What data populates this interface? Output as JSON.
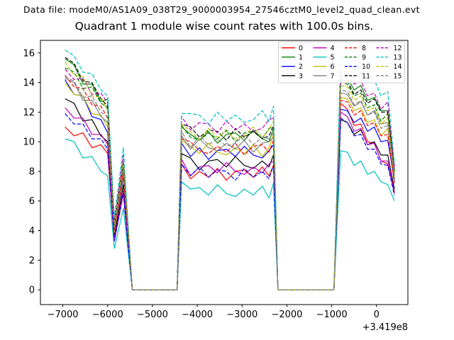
{
  "header": {
    "data_file": "Data file: modeM0/AS1A09_038T29_9000003954_27546cztM0_level2_quad_clean.evt"
  },
  "chart_data": {
    "type": "line",
    "title": "Quadrant 1 module wise count rates with 100.0s bins.",
    "xlabel": "",
    "ylabel": "",
    "x_offset_label": "+3.419e8",
    "xlim": [
      -7500,
      700
    ],
    "ylim": [
      -1.0,
      16.85
    ],
    "grid": false,
    "legend_position": "upper right",
    "legend_columns": 4,
    "x_ticks": [
      -7000,
      -6000,
      -5000,
      -4000,
      -3000,
      -2000,
      -1000,
      0
    ],
    "x_tick_labels": [
      "−7000",
      "−6000",
      "−5000",
      "−4000",
      "−3000",
      "−2000",
      "−1000",
      "0"
    ],
    "y_ticks": [
      0,
      2,
      4,
      6,
      8,
      10,
      12,
      14,
      16
    ],
    "y_tick_labels": [
      "0",
      "2",
      "4",
      "6",
      "8",
      "10",
      "12",
      "14",
      "16"
    ],
    "x": [
      -6950,
      -6750,
      -6550,
      -6350,
      -6150,
      -6000,
      -5850,
      -5650,
      -5450,
      -5200,
      -4950,
      -4700,
      -4450,
      -4350,
      -4150,
      -3950,
      -3750,
      -3550,
      -3350,
      -3150,
      -2950,
      -2750,
      -2550,
      -2400,
      -2300,
      -2200,
      -1950,
      -1700,
      -1450,
      -1200,
      -950,
      -800,
      -650,
      -500,
      -350,
      -200,
      -50,
      100,
      250,
      400
    ],
    "series": [
      {
        "name": "0",
        "color": "#ff0000",
        "dashed": false,
        "values": [
          11.0,
          10.4,
          10.6,
          9.6,
          9.8,
          9.2,
          3.3,
          6.5,
          0,
          0,
          0,
          0,
          0,
          8.5,
          7.5,
          8.0,
          7.6,
          8.2,
          7.4,
          8.0,
          8.1,
          7.6,
          8.3,
          7.7,
          8.4,
          0,
          0,
          0,
          0,
          0,
          0,
          12.6,
          12.2,
          11.1,
          11.2,
          10.0,
          9.9,
          8.7,
          8.5,
          6.6
        ]
      },
      {
        "name": "1",
        "color": "#008000",
        "dashed": false,
        "values": [
          15.6,
          15.2,
          13.9,
          13.9,
          12.7,
          12.9,
          4.3,
          8.5,
          0,
          0,
          0,
          0,
          0,
          11.0,
          10.5,
          10.1,
          10.7,
          9.9,
          10.5,
          10.6,
          10.1,
          10.8,
          10.2,
          10.0,
          10.9,
          0,
          0,
          0,
          0,
          0,
          0,
          14.5,
          14.3,
          13.5,
          13.8,
          12.8,
          13.0,
          12.1,
          12.1,
          8.0
        ]
      },
      {
        "name": "2",
        "color": "#0000ff",
        "dashed": false,
        "values": [
          14.2,
          13.2,
          13.1,
          11.7,
          11.5,
          10.6,
          3.9,
          7.6,
          0,
          0,
          0,
          0,
          0,
          9.9,
          9.0,
          9.6,
          8.8,
          9.4,
          9.5,
          9.0,
          9.7,
          9.1,
          8.9,
          9.4,
          9.8,
          0,
          0,
          0,
          0,
          0,
          0,
          12.2,
          12.1,
          11.3,
          11.6,
          10.7,
          11.0,
          10.0,
          10.1,
          7.4
        ]
      },
      {
        "name": "3",
        "color": "#000000",
        "dashed": false,
        "values": [
          12.9,
          12.6,
          11.4,
          11.5,
          10.4,
          10.0,
          3.6,
          7.1,
          0,
          0,
          0,
          0,
          0,
          9.2,
          8.9,
          8.1,
          8.7,
          8.8,
          8.3,
          9.0,
          8.4,
          8.2,
          8.7,
          8.3,
          9.1,
          0,
          0,
          0,
          0,
          0,
          0,
          11.5,
          11.3,
          10.5,
          10.8,
          9.8,
          10.0,
          9.1,
          9.1,
          6.8
        ]
      },
      {
        "name": "4",
        "color": "#bf00bf",
        "dashed": false,
        "values": [
          12.3,
          11.6,
          11.6,
          10.5,
          10.5,
          9.8,
          3.4,
          6.7,
          0,
          0,
          0,
          0,
          0,
          8.8,
          7.7,
          8.3,
          8.4,
          7.9,
          8.6,
          8.0,
          7.8,
          8.3,
          7.9,
          8.5,
          8.7,
          0,
          0,
          0,
          0,
          0,
          0,
          12.0,
          11.7,
          10.7,
          10.9,
          9.8,
          9.9,
          8.7,
          8.7,
          6.5
        ]
      },
      {
        "name": "5",
        "color": "#00bfbf",
        "dashed": false,
        "values": [
          10.2,
          10.0,
          8.9,
          9.0,
          8.0,
          7.7,
          2.8,
          5.5,
          0,
          0,
          0,
          0,
          0,
          7.3,
          6.8,
          6.9,
          6.4,
          7.1,
          6.5,
          6.3,
          6.8,
          6.4,
          7.0,
          6.2,
          7.2,
          0,
          0,
          0,
          0,
          0,
          0,
          9.4,
          9.3,
          8.4,
          8.7,
          7.8,
          8.0,
          7.3,
          7.1,
          6.0
        ]
      },
      {
        "name": "6",
        "color": "#bfbf00",
        "dashed": false,
        "values": [
          14.0,
          13.2,
          13.1,
          11.9,
          11.8,
          11.0,
          3.9,
          7.8,
          0,
          0,
          0,
          0,
          0,
          10.1,
          9.7,
          9.2,
          9.9,
          9.3,
          9.1,
          9.6,
          9.2,
          9.8,
          9.0,
          9.6,
          10.5,
          0,
          0,
          0,
          0,
          0,
          0,
          13.0,
          12.9,
          12.1,
          12.3,
          11.3,
          11.5,
          10.4,
          10.9,
          7.6
        ]
      },
      {
        "name": "7",
        "color": "#7f7f7f",
        "dashed": false,
        "values": [
          14.3,
          14.0,
          12.8,
          12.8,
          11.7,
          11.3,
          4.1,
          8.1,
          0,
          0,
          0,
          0,
          0,
          10.4,
          9.5,
          10.2,
          9.6,
          9.4,
          9.9,
          9.5,
          10.1,
          9.3,
          9.9,
          10.0,
          10.3,
          0,
          0,
          0,
          0,
          0,
          0,
          13.3,
          13.2,
          12.4,
          12.7,
          11.8,
          12.1,
          11.2,
          11.3,
          7.8
        ]
      },
      {
        "name": "8",
        "color": "#ff0000",
        "dashed": true,
        "values": [
          14.5,
          13.7,
          13.6,
          12.5,
          12.4,
          11.6,
          4.0,
          7.9,
          0,
          0,
          0,
          0,
          0,
          10.2,
          10.0,
          9.4,
          9.2,
          9.7,
          9.3,
          9.9,
          9.1,
          9.7,
          9.8,
          9.3,
          10.1,
          0,
          0,
          0,
          0,
          0,
          0,
          12.8,
          12.7,
          11.8,
          12.1,
          11.1,
          11.3,
          10.4,
          10.5,
          7.2
        ]
      },
      {
        "name": "9",
        "color": "#008000",
        "dashed": true,
        "values": [
          15.0,
          14.7,
          13.6,
          13.7,
          12.6,
          12.3,
          4.4,
          8.6,
          0,
          0,
          0,
          0,
          0,
          11.1,
          10.3,
          10.1,
          10.6,
          10.2,
          10.8,
          10.0,
          10.6,
          10.7,
          10.2,
          10.9,
          11.0,
          0,
          0,
          0,
          0,
          0,
          0,
          14.0,
          13.9,
          13.1,
          13.3,
          12.3,
          12.5,
          11.4,
          11.9,
          7.9
        ]
      },
      {
        "name": "10",
        "color": "#0000ff",
        "dashed": true,
        "values": [
          11.9,
          11.2,
          11.2,
          10.2,
          10.2,
          9.5,
          3.3,
          6.5,
          0,
          0,
          0,
          0,
          0,
          8.5,
          7.7,
          8.3,
          7.6,
          8.1,
          8.0,
          7.4,
          8.2,
          7.6,
          8.0,
          7.5,
          8.4,
          0,
          0,
          0,
          0,
          0,
          0,
          11.6,
          11.3,
          10.4,
          10.5,
          9.5,
          9.5,
          8.5,
          8.4,
          6.4
        ]
      },
      {
        "name": "11",
        "color": "#000000",
        "dashed": true,
        "values": [
          15.7,
          15.3,
          14.1,
          14.0,
          12.9,
          12.4,
          4.4,
          8.7,
          0,
          0,
          0,
          0,
          0,
          11.2,
          11.0,
          10.3,
          10.8,
          10.7,
          10.1,
          10.9,
          10.3,
          10.7,
          10.2,
          10.4,
          11.1,
          0,
          0,
          0,
          0,
          0,
          0,
          14.2,
          14.1,
          13.2,
          13.5,
          12.6,
          12.9,
          12.0,
          12.0,
          8.1
        ]
      },
      {
        "name": "12",
        "color": "#bf00bf",
        "dashed": true,
        "values": [
          14.9,
          14.2,
          14.3,
          13.2,
          13.3,
          12.6,
          4.6,
          9.1,
          0,
          0,
          0,
          0,
          0,
          11.7,
          10.8,
          11.3,
          11.2,
          10.6,
          11.4,
          10.8,
          11.2,
          10.7,
          10.9,
          11.5,
          11.6,
          0,
          0,
          0,
          0,
          0,
          0,
          14.8,
          14.7,
          13.9,
          14.1,
          13.1,
          13.3,
          12.2,
          12.7,
          8.3
        ]
      },
      {
        "name": "13",
        "color": "#00bfbf",
        "dashed": true,
        "values": [
          16.2,
          15.8,
          14.7,
          14.6,
          13.5,
          13.1,
          4.9,
          9.6,
          0,
          0,
          0,
          0,
          0,
          11.9,
          11.9,
          11.8,
          11.2,
          12.0,
          11.4,
          11.8,
          11.3,
          11.5,
          12.1,
          11.4,
          12.4,
          0,
          0,
          0,
          0,
          0,
          0,
          15.8,
          15.6,
          14.8,
          15.1,
          14.0,
          14.2,
          13.1,
          13.4,
          8.5
        ]
      },
      {
        "name": "14",
        "color": "#bfbf00",
        "dashed": true,
        "values": [
          15.4,
          14.5,
          14.4,
          13.1,
          13.0,
          12.1,
          4.4,
          8.7,
          0,
          0,
          0,
          0,
          0,
          11.2,
          10.7,
          10.1,
          10.9,
          10.3,
          10.7,
          10.2,
          10.4,
          11.0,
          10.3,
          10.8,
          11.4,
          0,
          0,
          0,
          0,
          0,
          0,
          13.8,
          13.7,
          12.8,
          13.1,
          12.1,
          12.3,
          11.2,
          11.6,
          7.8
        ]
      },
      {
        "name": "15",
        "color": "#7f7f7f",
        "dashed": true,
        "values": [
          14.4,
          14.1,
          13.0,
          13.1,
          12.0,
          11.7,
          4.2,
          8.3,
          0,
          0,
          0,
          0,
          0,
          10.7,
          9.6,
          10.4,
          9.8,
          10.2,
          9.7,
          9.9,
          10.5,
          9.8,
          10.3,
          10.2,
          10.6,
          0,
          0,
          0,
          0,
          0,
          0,
          13.5,
          13.4,
          12.5,
          12.8,
          11.8,
          12.0,
          10.9,
          11.1,
          7.7
        ]
      }
    ]
  }
}
